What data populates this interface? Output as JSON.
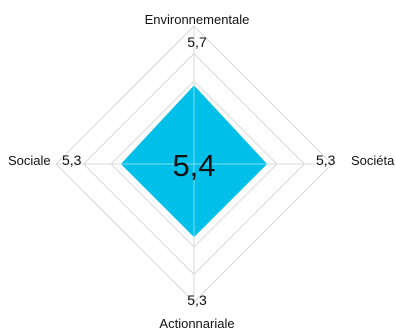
{
  "chart_data": {
    "type": "radar",
    "scale_max": 10,
    "grid_levels": 5,
    "axes": [
      {
        "name": "Environnementale",
        "value": 5.7,
        "value_label": "5,7"
      },
      {
        "name": "Sociétale",
        "value": 5.3,
        "value_label": "5,3"
      },
      {
        "name": "Actionnariale",
        "value": 5.3,
        "value_label": "5,3"
      },
      {
        "name": "Sociale",
        "value": 5.3,
        "value_label": "5,3"
      }
    ],
    "overall_score": "5,4",
    "colors": {
      "fill": "#00bfe8",
      "grid": "#d9d9d9"
    }
  }
}
